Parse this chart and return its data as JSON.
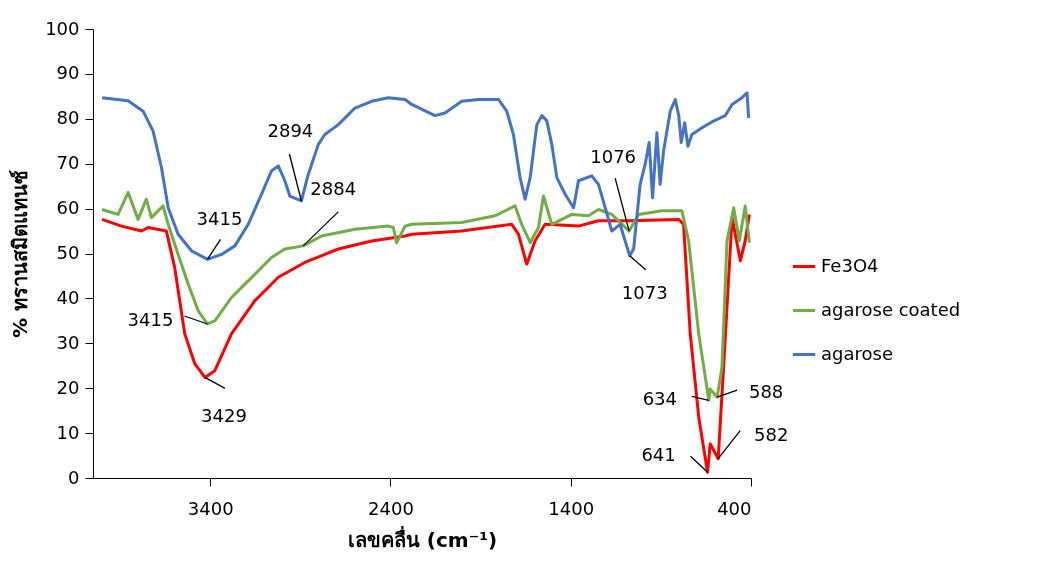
{
  "chart_data": {
    "type": "line",
    "xlabel": "เลขคลื่น (cm⁻¹)",
    "ylabel": "% ทรานสมิตแทนซ์",
    "xlim": [
      4050,
      400
    ],
    "xticks": [
      3400,
      2400,
      1400,
      400
    ],
    "ylim": [
      0,
      100
    ],
    "yticks": [
      0,
      10,
      20,
      30,
      40,
      50,
      60,
      70,
      80,
      90,
      100
    ],
    "grid": false,
    "legend": "right",
    "line_style": "solid",
    "marker": "none",
    "series": [
      {
        "name": "Fe3O4",
        "color": "#ff0000",
        "x": [
          4000,
          3892,
          3781,
          3744,
          3643,
          3597,
          3541,
          3485,
          3429,
          3374,
          3282,
          3152,
          3022,
          2875,
          2689,
          2504,
          2319,
          2282,
          2005,
          1727,
          1690,
          1644,
          1598,
          1542,
          1357,
          1246,
          1079,
          801,
          774,
          737,
          690,
          641,
          626,
          582,
          552,
          505,
          459,
          432,
          409
        ],
        "values": [
          57.6,
          56.1,
          55.0,
          55.8,
          55.0,
          46.9,
          32.1,
          25.4,
          22.4,
          23.9,
          32.1,
          39.5,
          44.7,
          48.0,
          51.0,
          52.8,
          53.9,
          54.3,
          55.0,
          56.5,
          54.3,
          47.6,
          52.8,
          56.5,
          56.1,
          57.3,
          57.3,
          57.6,
          56.5,
          32.1,
          13.6,
          1.3,
          7.6,
          4.3,
          24.7,
          58.0,
          48.4,
          52.8,
          58.7
        ]
      },
      {
        "name": "agarose coated",
        "color": "#70ad47",
        "x": [
          4000,
          3911,
          3855,
          3800,
          3754,
          3726,
          3661,
          3633,
          3578,
          3522,
          3467,
          3415,
          3374,
          3282,
          3189,
          3060,
          2986,
          2884,
          2782,
          2597,
          2412,
          2384,
          2366,
          2319,
          2282,
          2005,
          1820,
          1709,
          1672,
          1625,
          1579,
          1551,
          1505,
          1394,
          1301,
          1246,
          1172,
          1076,
          1024,
          894,
          783,
          746,
          690,
          634,
          626,
          588,
          561,
          533,
          496,
          465,
          432,
          409
        ],
        "values": [
          59.8,
          58.7,
          63.6,
          57.6,
          62.1,
          58.0,
          60.6,
          56.5,
          49.8,
          43.2,
          37.3,
          34.3,
          35.0,
          40.2,
          43.9,
          49.1,
          51.0,
          51.7,
          53.9,
          55.4,
          56.1,
          55.8,
          52.4,
          56.1,
          56.5,
          56.9,
          58.4,
          60.6,
          56.5,
          52.4,
          55.8,
          62.8,
          56.5,
          58.7,
          58.4,
          59.8,
          58.7,
          55.0,
          58.7,
          59.5,
          59.5,
          52.8,
          32.1,
          17.3,
          19.8,
          18.0,
          24.7,
          52.8,
          60.2,
          52.8,
          60.6,
          52.4
        ]
      },
      {
        "name": "agarose",
        "color": "#4472c4",
        "x": [
          4000,
          3855,
          3772,
          3717,
          3670,
          3633,
          3578,
          3504,
          3415,
          3337,
          3263,
          3189,
          3115,
          3060,
          3022,
          2986,
          2958,
          2894,
          2856,
          2800,
          2764,
          2689,
          2597,
          2504,
          2412,
          2319,
          2282,
          2153,
          2097,
          2005,
          1912,
          1801,
          1755,
          1718,
          1681,
          1653,
          1625,
          1588,
          1560,
          1533,
          1505,
          1477,
          1431,
          1384,
          1357,
          1283,
          1246,
          1209,
          1172,
          1126,
          1073,
          1051,
          1015,
          987,
          965,
          946,
          922,
          904,
          885,
          848,
          820,
          801,
          787,
          768,
          750,
          728,
          672,
          617,
          543,
          505,
          450,
          422,
          413
        ],
        "values": [
          84.7,
          84.0,
          81.7,
          77.3,
          69.1,
          60.2,
          54.3,
          50.6,
          48.7,
          49.8,
          51.7,
          56.5,
          63.2,
          68.4,
          69.5,
          66.2,
          62.8,
          61.7,
          67.6,
          74.3,
          76.5,
          78.7,
          82.4,
          83.9,
          84.7,
          84.3,
          83.2,
          80.7,
          81.3,
          83.9,
          84.3,
          84.3,
          81.7,
          76.5,
          66.9,
          62.1,
          66.9,
          78.7,
          80.7,
          79.6,
          74.3,
          66.9,
          63.2,
          60.2,
          66.2,
          67.3,
          65.4,
          60.2,
          55.0,
          56.5,
          49.5,
          51.0,
          65.4,
          69.9,
          74.7,
          62.4,
          76.9,
          65.4,
          72.8,
          81.7,
          84.3,
          80.7,
          74.7,
          79.1,
          73.9,
          76.5,
          78.0,
          79.3,
          80.7,
          83.2,
          84.7,
          85.8,
          80.2
        ]
      }
    ],
    "annotations": [
      {
        "text": "3415",
        "x": 3415,
        "y": 48.7
      },
      {
        "text": "2894",
        "x": 2894,
        "y": 61.7
      },
      {
        "text": "1073",
        "x": 1073,
        "y": 49.5
      },
      {
        "text": "1076",
        "x": 1076,
        "y": 55.0
      },
      {
        "text": "3415",
        "x": 3415,
        "y": 34.3
      },
      {
        "text": "2884",
        "x": 2884,
        "y": 51.7
      },
      {
        "text": "3429",
        "x": 3429,
        "y": 22.4
      },
      {
        "text": "634",
        "x": 634,
        "y": 17.3
      },
      {
        "text": "588",
        "x": 588,
        "y": 18.0
      },
      {
        "text": "641",
        "x": 641,
        "y": 1.3
      },
      {
        "text": "582",
        "x": 582,
        "y": 4.3
      }
    ]
  }
}
